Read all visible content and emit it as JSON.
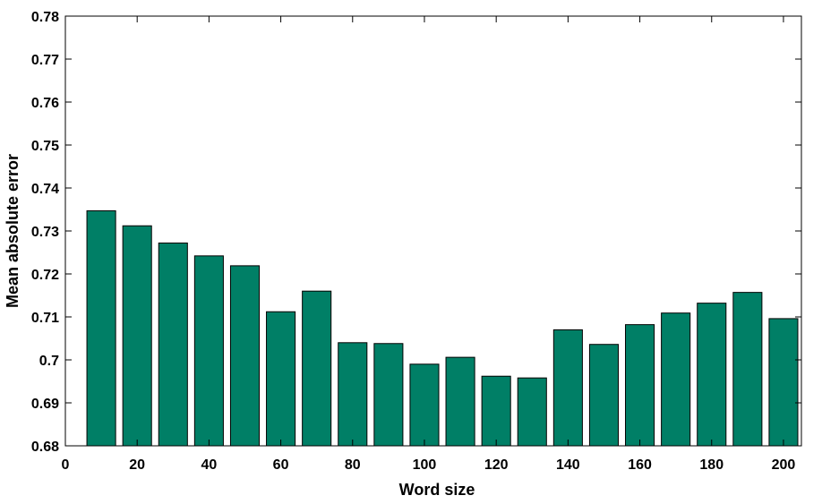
{
  "chart_data": {
    "type": "bar",
    "title": "",
    "xlabel": "Word size",
    "ylabel": "Mean absolute error",
    "xlim": [
      0,
      205
    ],
    "ylim": [
      0.68,
      0.78
    ],
    "x_ticks": [
      0,
      20,
      40,
      60,
      80,
      100,
      120,
      140,
      160,
      180,
      200
    ],
    "x_tick_labels": [
      "0",
      "20",
      "40",
      "60",
      "80",
      "100",
      "120",
      "140",
      "160",
      "180",
      "200"
    ],
    "y_ticks": [
      0.68,
      0.69,
      0.7,
      0.71,
      0.72,
      0.73,
      0.74,
      0.75,
      0.76,
      0.77,
      0.78
    ],
    "y_tick_labels": [
      "0.68",
      "0.69",
      "0.7",
      "0.71",
      "0.72",
      "0.73",
      "0.74",
      "0.75",
      "0.76",
      "0.77",
      "0.78"
    ],
    "bar_width": 8,
    "bar_color": "#007f66",
    "grid": false,
    "x": [
      10,
      20,
      30,
      40,
      50,
      60,
      70,
      80,
      90,
      100,
      110,
      120,
      130,
      140,
      150,
      160,
      170,
      180,
      190,
      200
    ],
    "values": [
      0.7347,
      0.7312,
      0.7272,
      0.7242,
      0.7219,
      0.7112,
      0.716,
      0.704,
      0.7038,
      0.699,
      0.7006,
      0.6962,
      0.6958,
      0.707,
      0.7036,
      0.7082,
      0.7109,
      0.7132,
      0.7157,
      0.7096
    ]
  }
}
